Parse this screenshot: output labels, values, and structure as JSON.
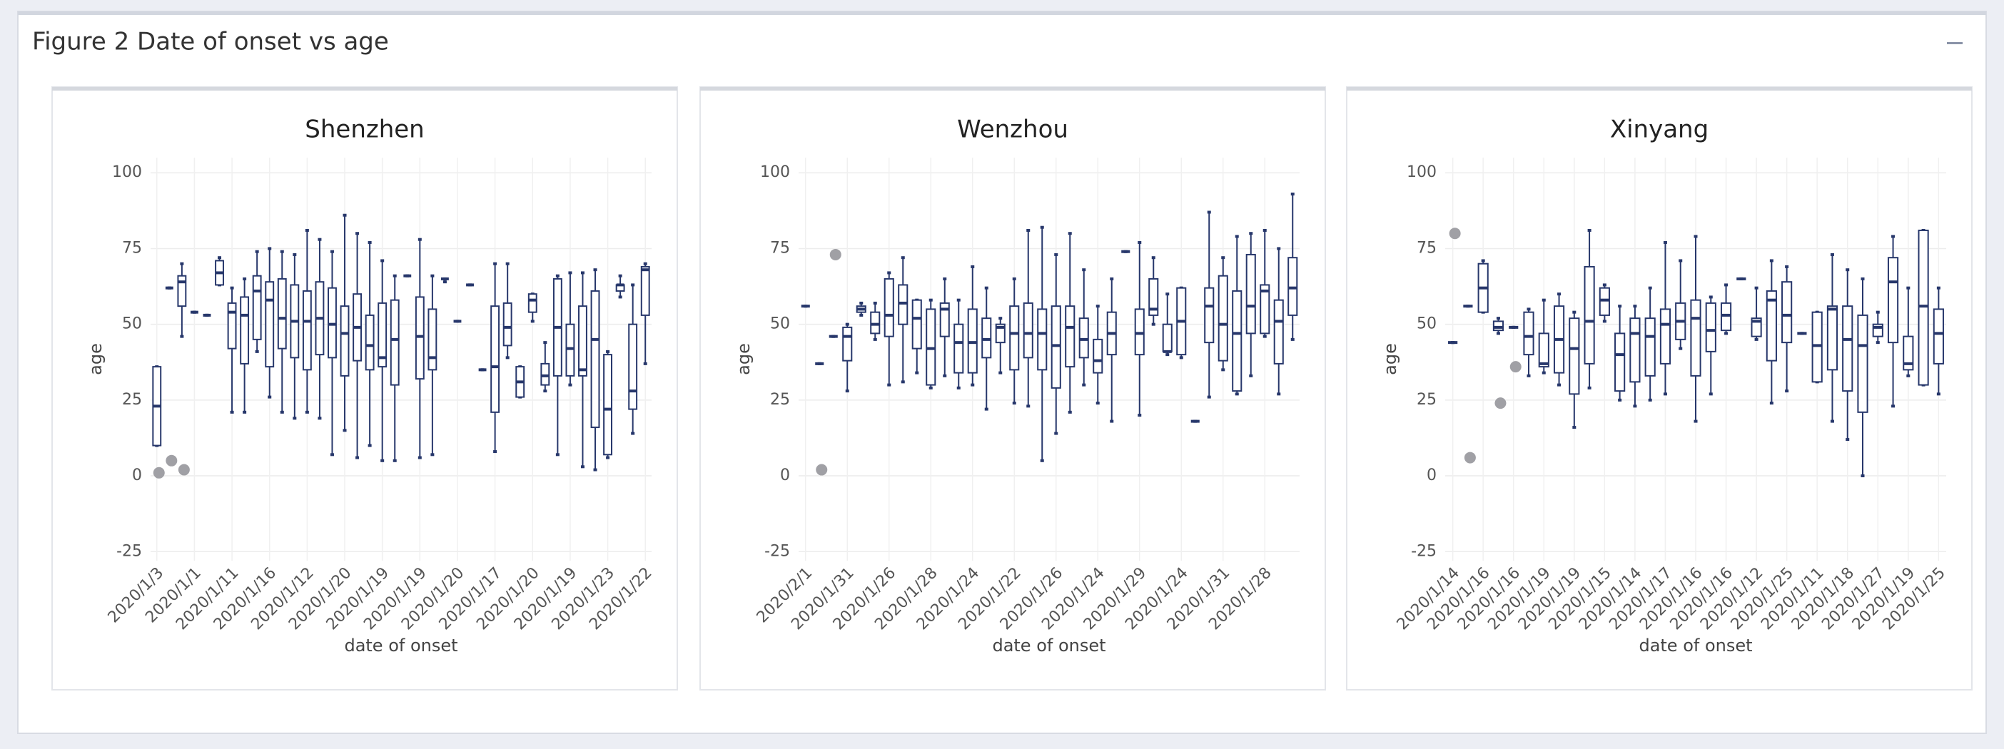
{
  "header": {
    "title": "Figure 2 Date of onset vs age"
  },
  "chart_data": [
    {
      "type": "box",
      "title": "Shenzhen",
      "x_label": "date of onset",
      "y_label": "age",
      "ylim": [
        -28,
        105
      ],
      "yticks": [
        -25,
        0,
        25,
        50,
        75,
        100
      ],
      "grid": true,
      "color": "#27376b",
      "outlier_color": "#a0a0a5",
      "categories": [
        "2020/1/3",
        null,
        null,
        "2020/1/1",
        null,
        null,
        "2020/1/11",
        null,
        null,
        "2020/1/16",
        null,
        null,
        "2020/1/12",
        null,
        null,
        "2020/1/20",
        null,
        null,
        "2020/1/19",
        null,
        null,
        "2020/1/19",
        null,
        null,
        "2020/1/20",
        null,
        null,
        "2020/1/17",
        null,
        null,
        "2020/1/20",
        null,
        null,
        "2020/1/19",
        null,
        null,
        "2020/1/23",
        null,
        null,
        "2020/1/22"
      ],
      "boxes": [
        [
          10,
          10,
          23,
          36,
          36
        ],
        [
          62,
          62,
          62,
          62,
          62
        ],
        [
          46,
          56,
          64,
          66,
          70
        ],
        [
          54,
          54,
          54,
          54,
          54
        ],
        [
          53,
          53,
          53,
          53,
          53
        ],
        [
          63,
          63,
          67,
          71,
          72
        ],
        [
          21,
          42,
          54,
          57,
          62
        ],
        [
          21,
          37,
          53,
          59,
          65
        ],
        [
          41,
          45,
          61,
          66,
          74
        ],
        [
          26,
          36,
          58,
          64,
          75
        ],
        [
          21,
          42,
          52,
          65,
          74
        ],
        [
          19,
          39,
          51,
          63,
          73
        ],
        [
          21,
          35,
          51,
          61,
          81
        ],
        [
          19,
          40,
          52,
          64,
          78
        ],
        [
          7,
          39,
          50,
          62,
          74
        ],
        [
          15,
          33,
          47,
          56,
          86
        ],
        [
          6,
          38,
          49,
          60,
          80
        ],
        [
          10,
          35,
          43,
          53,
          77
        ],
        [
          5,
          36,
          39,
          57,
          71
        ],
        [
          5,
          30,
          45,
          58,
          66
        ],
        [
          66,
          66,
          66,
          66,
          66
        ],
        [
          6,
          32,
          46,
          59,
          78
        ],
        [
          7,
          35,
          39,
          55,
          66
        ],
        [
          64,
          65,
          65,
          65,
          65
        ],
        [
          51,
          51,
          51,
          51,
          51
        ],
        [
          63,
          63,
          63,
          63,
          63
        ],
        [
          35,
          35,
          35,
          35,
          35
        ],
        [
          8,
          21,
          36,
          56,
          70
        ],
        [
          39,
          43,
          49,
          57,
          70
        ],
        [
          26,
          26,
          31,
          36,
          36
        ],
        [
          51,
          54,
          58,
          60,
          60
        ],
        [
          28,
          30,
          33,
          37,
          44
        ],
        [
          7,
          33,
          49,
          65,
          66
        ],
        [
          30,
          33,
          42,
          50,
          67
        ],
        [
          3,
          33,
          35,
          56,
          67
        ],
        [
          2,
          16,
          45,
          61,
          68
        ],
        [
          6,
          7,
          22,
          40,
          41
        ],
        [
          59,
          61,
          63,
          63,
          66
        ],
        [
          14,
          22,
          28,
          50,
          63
        ],
        [
          37,
          53,
          68,
          69,
          70
        ]
      ],
      "outliers": [
        1,
        5,
        2,
        null,
        null,
        null,
        null,
        null,
        null,
        null,
        null,
        null,
        null,
        null,
        null,
        null,
        null,
        null,
        null,
        null,
        null,
        null,
        null,
        null,
        null,
        null,
        null,
        null,
        null,
        null,
        null,
        null,
        null,
        null,
        null,
        null,
        null,
        null,
        null,
        null
      ]
    },
    {
      "type": "box",
      "title": "Wenzhou",
      "x_label": "date of onset",
      "y_label": "age",
      "ylim": [
        -28,
        105
      ],
      "yticks": [
        -25,
        0,
        25,
        50,
        75,
        100
      ],
      "grid": true,
      "color": "#27376b",
      "outlier_color": "#a0a0a5",
      "categories": [
        "2020/2/1",
        null,
        null,
        "2020/1/31",
        null,
        null,
        "2020/1/26",
        null,
        null,
        "2020/1/28",
        null,
        null,
        "2020/1/24",
        null,
        null,
        "2020/1/22",
        null,
        null,
        "2020/1/26",
        null,
        null,
        "2020/1/24",
        null,
        null,
        "2020/1/29",
        null,
        null,
        "2020/1/24",
        null,
        null,
        "2020/1/31",
        null,
        null,
        "2020/1/28",
        null,
        null
      ],
      "boxes": [
        [
          56,
          56,
          56,
          56,
          56
        ],
        [
          37,
          37,
          37,
          37,
          37
        ],
        [
          46,
          46,
          46,
          46,
          46
        ],
        [
          28,
          38,
          46,
          49,
          50
        ],
        [
          53,
          54,
          55,
          56,
          57
        ],
        [
          45,
          47,
          50,
          54,
          57
        ],
        [
          30,
          46,
          53,
          65,
          67
        ],
        [
          31,
          50,
          57,
          63,
          72
        ],
        [
          34,
          42,
          52,
          58,
          58
        ],
        [
          29,
          30,
          42,
          55,
          58
        ],
        [
          33,
          46,
          55,
          57,
          65
        ],
        [
          29,
          34,
          44,
          50,
          58
        ],
        [
          30,
          34,
          44,
          55,
          69
        ],
        [
          22,
          39,
          45,
          52,
          62
        ],
        [
          34,
          44,
          49,
          50,
          52
        ],
        [
          24,
          35,
          47,
          56,
          65
        ],
        [
          23,
          39,
          47,
          57,
          81
        ],
        [
          5,
          35,
          47,
          55,
          82
        ],
        [
          14,
          29,
          43,
          56,
          73
        ],
        [
          21,
          36,
          49,
          56,
          80
        ],
        [
          30,
          39,
          45,
          52,
          68
        ],
        [
          24,
          34,
          38,
          45,
          56
        ],
        [
          18,
          40,
          47,
          54,
          65
        ],
        [
          74,
          74,
          74,
          74,
          74
        ],
        [
          20,
          40,
          47,
          55,
          77
        ],
        [
          50,
          53,
          55,
          65,
          72
        ],
        [
          40,
          41,
          41,
          50,
          60
        ],
        [
          39,
          40,
          51,
          62,
          62
        ],
        [
          18,
          18,
          18,
          18,
          18
        ],
        [
          26,
          44,
          56,
          62,
          87
        ],
        [
          35,
          38,
          50,
          66,
          72
        ],
        [
          27,
          28,
          47,
          61,
          79
        ],
        [
          33,
          47,
          56,
          73,
          80
        ],
        [
          46,
          47,
          61,
          63,
          81
        ],
        [
          27,
          37,
          51,
          58,
          75
        ],
        [
          45,
          53,
          62,
          72,
          93
        ]
      ],
      "outliers": [
        null,
        2,
        73,
        null,
        null,
        null,
        null,
        null,
        null,
        null,
        null,
        null,
        null,
        null,
        null,
        null,
        null,
        null,
        null,
        null,
        null,
        null,
        null,
        null,
        null,
        null,
        null,
        null,
        null,
        null,
        null,
        null,
        null,
        null,
        null,
        null
      ]
    },
    {
      "type": "box",
      "title": "Xinyang",
      "x_label": "date of onset",
      "y_label": "age",
      "ylim": [
        -28,
        105
      ],
      "yticks": [
        -25,
        0,
        25,
        50,
        75,
        100
      ],
      "grid": true,
      "color": "#27376b",
      "outlier_color": "#a0a0a5",
      "categories": [
        "2020/1/14",
        null,
        "2020/1/16",
        null,
        "2020/1/16",
        null,
        "2020/1/19",
        null,
        "2020/1/19",
        null,
        "2020/1/15",
        null,
        "2020/1/14",
        null,
        "2020/1/17",
        null,
        "2020/1/16",
        null,
        "2020/1/16",
        null,
        "2020/1/12",
        null,
        "2020/1/25",
        null,
        "2020/1/11",
        null,
        "2020/1/18",
        null,
        "2020/1/27",
        null,
        "2020/1/19",
        null,
        "2020/1/25"
      ],
      "boxes": [
        [
          44,
          44,
          44,
          44,
          44
        ],
        [
          56,
          56,
          56,
          56,
          56
        ],
        [
          54,
          54,
          62,
          70,
          71
        ],
        [
          47,
          48,
          49,
          51,
          52
        ],
        [
          49,
          49,
          49,
          49,
          49
        ],
        [
          33,
          40,
          46,
          54,
          55
        ],
        [
          34,
          36,
          37,
          47,
          58
        ],
        [
          30,
          34,
          45,
          56,
          60
        ],
        [
          16,
          27,
          42,
          52,
          54
        ],
        [
          29,
          37,
          51,
          69,
          81
        ],
        [
          51,
          53,
          58,
          62,
          63
        ],
        [
          25,
          28,
          40,
          47,
          56
        ],
        [
          23,
          31,
          47,
          52,
          56
        ],
        [
          25,
          33,
          46,
          52,
          62
        ],
        [
          27,
          37,
          50,
          55,
          77
        ],
        [
          42,
          45,
          51,
          57,
          71
        ],
        [
          18,
          33,
          52,
          58,
          79
        ],
        [
          27,
          41,
          48,
          57,
          59
        ],
        [
          47,
          48,
          53,
          57,
          63
        ],
        [
          65,
          65,
          65,
          65,
          65
        ],
        [
          45,
          46,
          51,
          52,
          62
        ],
        [
          24,
          38,
          58,
          61,
          71
        ],
        [
          28,
          44,
          53,
          64,
          69
        ],
        [
          47,
          47,
          47,
          47,
          47
        ],
        [
          31,
          31,
          43,
          54,
          54
        ],
        [
          18,
          35,
          55,
          56,
          73
        ],
        [
          12,
          28,
          45,
          56,
          68
        ],
        [
          0,
          21,
          43,
          53,
          65
        ],
        [
          44,
          46,
          49,
          50,
          54
        ],
        [
          23,
          44,
          64,
          72,
          79
        ],
        [
          33,
          35,
          37,
          46,
          62
        ],
        [
          30,
          30,
          56,
          81,
          81
        ],
        [
          27,
          37,
          47,
          55,
          62
        ]
      ],
      "outliers": [
        80,
        6,
        null,
        24,
        36,
        null,
        null,
        null,
        null,
        null,
        null,
        null,
        null,
        null,
        null,
        null,
        null,
        null,
        null,
        null,
        null,
        null,
        null,
        null,
        null,
        null,
        null,
        null,
        null,
        null,
        null,
        null,
        null
      ]
    }
  ]
}
